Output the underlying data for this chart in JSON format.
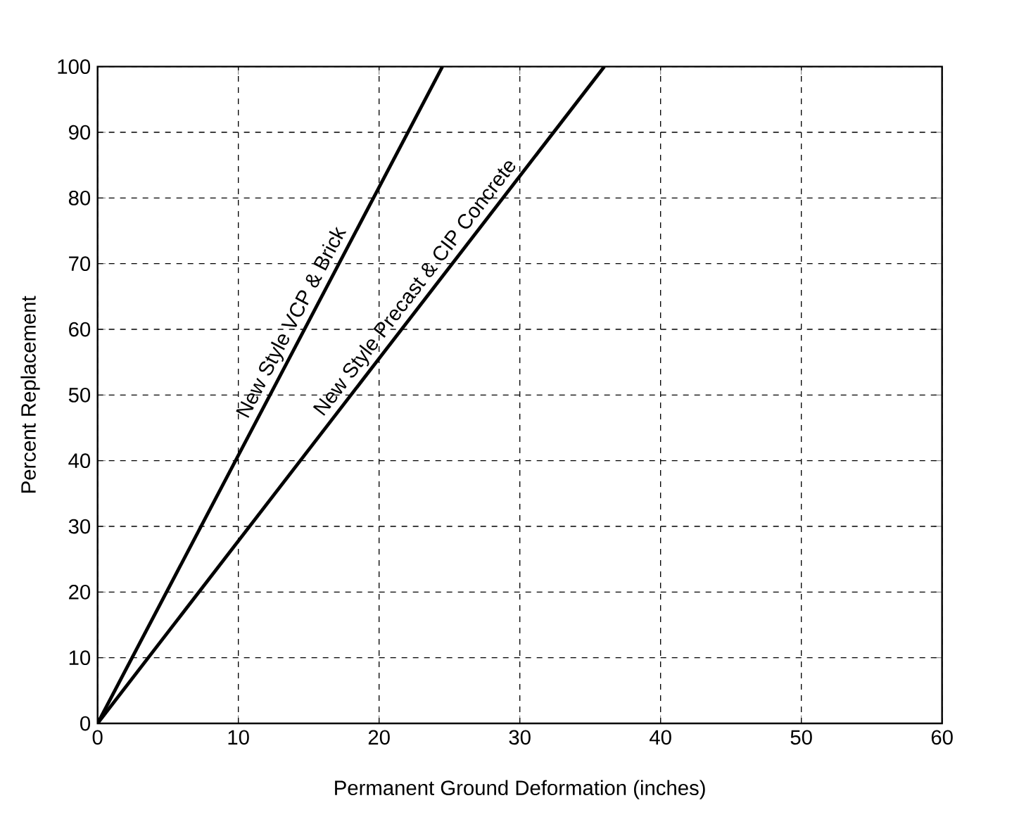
{
  "chart_data": {
    "type": "line",
    "xlabel": "Permanent Ground Deformation (inches)",
    "ylabel": "Percent Replacement",
    "xlim": [
      0,
      60
    ],
    "ylim": [
      0,
      100
    ],
    "xticks": [
      0,
      10,
      20,
      30,
      40,
      50,
      60
    ],
    "yticks": [
      0,
      10,
      20,
      30,
      40,
      50,
      60,
      70,
      80,
      90,
      100
    ],
    "grid": true,
    "legend": false,
    "line_style": "solid",
    "marker": "none",
    "series": [
      {
        "name": "New Style VCP & Brick",
        "color": "#000000",
        "x": [
          0,
          24.5
        ],
        "values": [
          0,
          100
        ]
      },
      {
        "name": "New Style Precast & CIP Concrete",
        "color": "#000000",
        "x": [
          0,
          36
        ],
        "values": [
          0,
          100
        ]
      }
    ]
  }
}
